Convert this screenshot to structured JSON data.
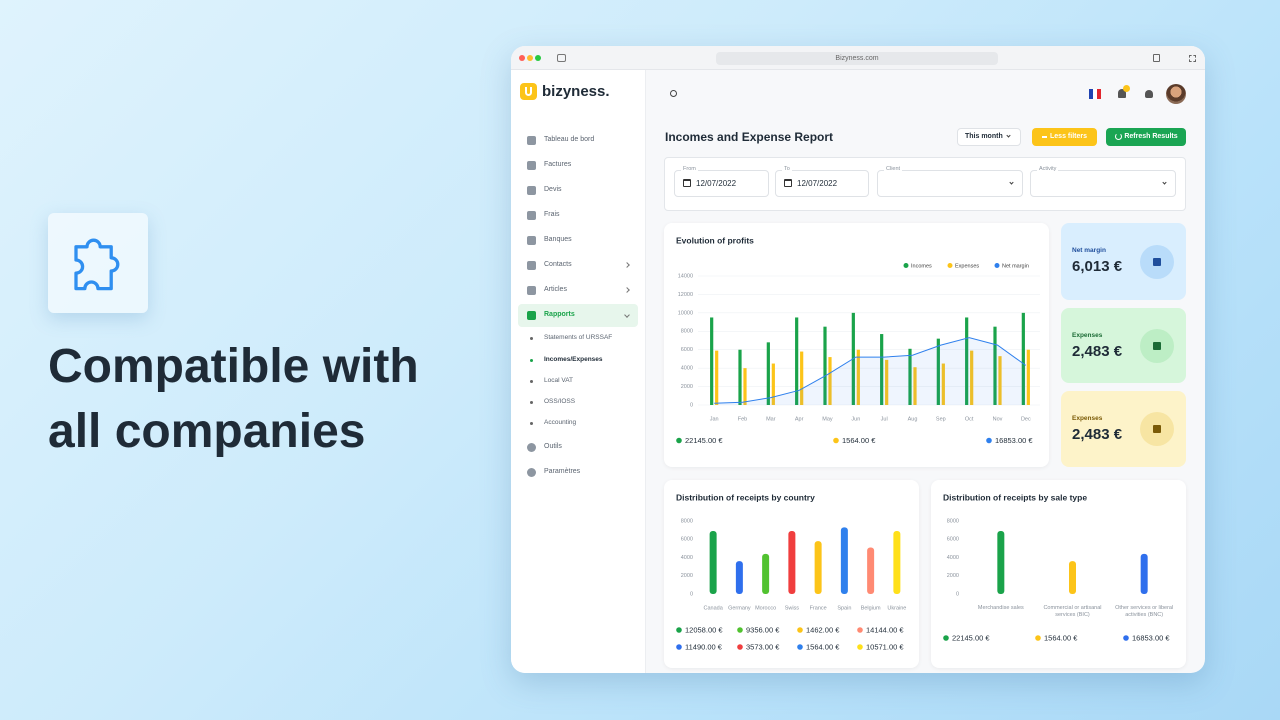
{
  "headline": "Compatible with all companies",
  "browser": {
    "url": "Bizyness.com"
  },
  "sidebar": {
    "logo": "bizyness.",
    "menu": [
      "Tableau de bord",
      "Factures",
      "Devis",
      "Frais",
      "Banques",
      "Contacts",
      "Articles",
      "Rapports"
    ],
    "report_menu": [
      "Statements of URSSAF",
      "Incomes/Expenses",
      "Local VAT",
      "OSS/IOSS",
      "Accounting"
    ],
    "menu_bottom": [
      "Outils",
      "Paramètres"
    ]
  },
  "report": {
    "title": "Incomes and Expense Report",
    "buttons": [
      "This month",
      "Less filters",
      "Refresh Results"
    ],
    "filters": [
      {
        "label": "From",
        "value": "12/07/2022"
      },
      {
        "label": "To",
        "value": "12/07/2022"
      },
      {
        "label": "Client"
      },
      {
        "label": "Activity"
      }
    ]
  },
  "kpis": [
    {
      "label": "Net margin",
      "value": "6,013 €"
    },
    {
      "label": "Expenses",
      "value": "2,483 €"
    },
    {
      "label": "Expenses",
      "value": "2,483 €"
    }
  ],
  "chart_data": [
    {
      "type": "bar",
      "title": "Evolution of profits",
      "categories": [
        "Jan",
        "Feb",
        "Mar",
        "Apr",
        "May",
        "Jun",
        "Jul",
        "Aug",
        "Sep",
        "Oct",
        "Nov",
        "Dec"
      ],
      "series": [
        {
          "name": "Incomes",
          "color": "#1aa34a",
          "values": [
            9500,
            6000,
            6800,
            9500,
            8500,
            10000,
            7700,
            6100,
            7200,
            9500,
            8500,
            10000
          ]
        },
        {
          "name": "Expenses",
          "color": "#fcc419",
          "values": [
            5900,
            4000,
            4500,
            5800,
            5200,
            6000,
            4900,
            4100,
            4500,
            5900,
            5300,
            6000
          ]
        },
        {
          "name": "Net margin",
          "color": "#2f80ed",
          "type": "line",
          "values": [
            200,
            300,
            800,
            1600,
            3300,
            5200,
            5200,
            5400,
            6500,
            7300,
            6500,
            4300
          ]
        }
      ],
      "totals": [
        "22145.00 €",
        "1564.00 €",
        "16853.00 €"
      ],
      "ylim": [
        0,
        14000
      ],
      "yticks": [
        0,
        2000,
        4000,
        6000,
        8000,
        10000,
        12000,
        14000
      ],
      "grid": true,
      "legend": "top-right"
    },
    {
      "type": "bar",
      "title": "Distribution of receipts by country",
      "categories": [
        "Canada",
        "Germany",
        "Morocco",
        "Swiss",
        "France",
        "Spain",
        "Belgium",
        "Ukraine"
      ],
      "values": [
        6900,
        3600,
        4400,
        6900,
        5800,
        7300,
        5100,
        6900
      ],
      "colors": [
        "#1aa34a",
        "#2f6fed",
        "#51c230",
        "#f03e3e",
        "#fcc419",
        "#2f80ed",
        "#ff8a73",
        "#ffe01a"
      ],
      "legend_items": [
        {
          "label": "12058.00 €",
          "color": "#1aa34a"
        },
        {
          "label": "9356.00 €",
          "color": "#51c230"
        },
        {
          "label": "1462.00 €",
          "color": "#fcc419"
        },
        {
          "label": "14144.00 €",
          "color": "#ff8a73"
        },
        {
          "label": "11490.00 €",
          "color": "#2f6fed"
        },
        {
          "label": "3573.00 €",
          "color": "#f03e3e"
        },
        {
          "label": "1564.00 €",
          "color": "#2f80ed"
        },
        {
          "label": "10571.00 €",
          "color": "#ffe01a"
        }
      ],
      "ylim": [
        0,
        8000
      ],
      "yticks": [
        0,
        2000,
        4000,
        6000,
        8000
      ]
    },
    {
      "type": "bar",
      "title": "Distribution of receipts by sale type",
      "categories": [
        "Merchandise sales",
        "Commercial or artisanal services (BIC)",
        "Other services or liberal activities (BNC)"
      ],
      "values": [
        6900,
        3600,
        4400
      ],
      "colors": [
        "#1aa34a",
        "#fcc419",
        "#2f6fed"
      ],
      "totals": [
        "22145.00 €",
        "1564.00 €",
        "16853.00 €"
      ],
      "ylim": [
        0,
        8000
      ],
      "yticks": [
        0,
        2000,
        4000,
        6000,
        8000
      ]
    }
  ]
}
